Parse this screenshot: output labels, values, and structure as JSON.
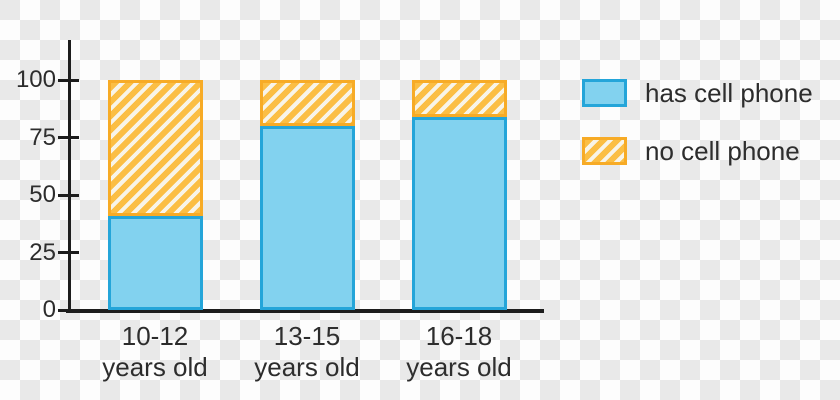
{
  "chart_data": {
    "type": "bar",
    "stacked": true,
    "orientation": "vertical",
    "categories": [
      "10-12\nyears old",
      "13-15\nyears old",
      "16-18\nyears old"
    ],
    "series": [
      {
        "name": "has cell phone",
        "values": [
          41,
          80,
          84
        ],
        "style": "solid"
      },
      {
        "name": "no cell phone",
        "values": [
          59,
          20,
          16
        ],
        "style": "hatched"
      }
    ],
    "ylim": [
      0,
      100
    ],
    "yticks": [
      0,
      25,
      50,
      75,
      100
    ],
    "xlabel": "",
    "ylabel": "",
    "grid": false,
    "legend": {
      "position": "right",
      "items": [
        {
          "label": "has cell phone",
          "swatch": "solid-blue"
        },
        {
          "label": "no cell phone",
          "swatch": "hatched-yellow"
        }
      ]
    },
    "colors": {
      "bar_fill": "#82d2ef",
      "bar_border": "#24a5d9",
      "hatch_fill": "#fbbe44",
      "hatch_stripe": "#f8f4e8",
      "hatch_border": "#f7ab26",
      "axis": "#1d1d1d",
      "text": "#2d2d2d",
      "checker_light": "#fdfdfd",
      "checker_gray": "#e9e9e9"
    }
  }
}
